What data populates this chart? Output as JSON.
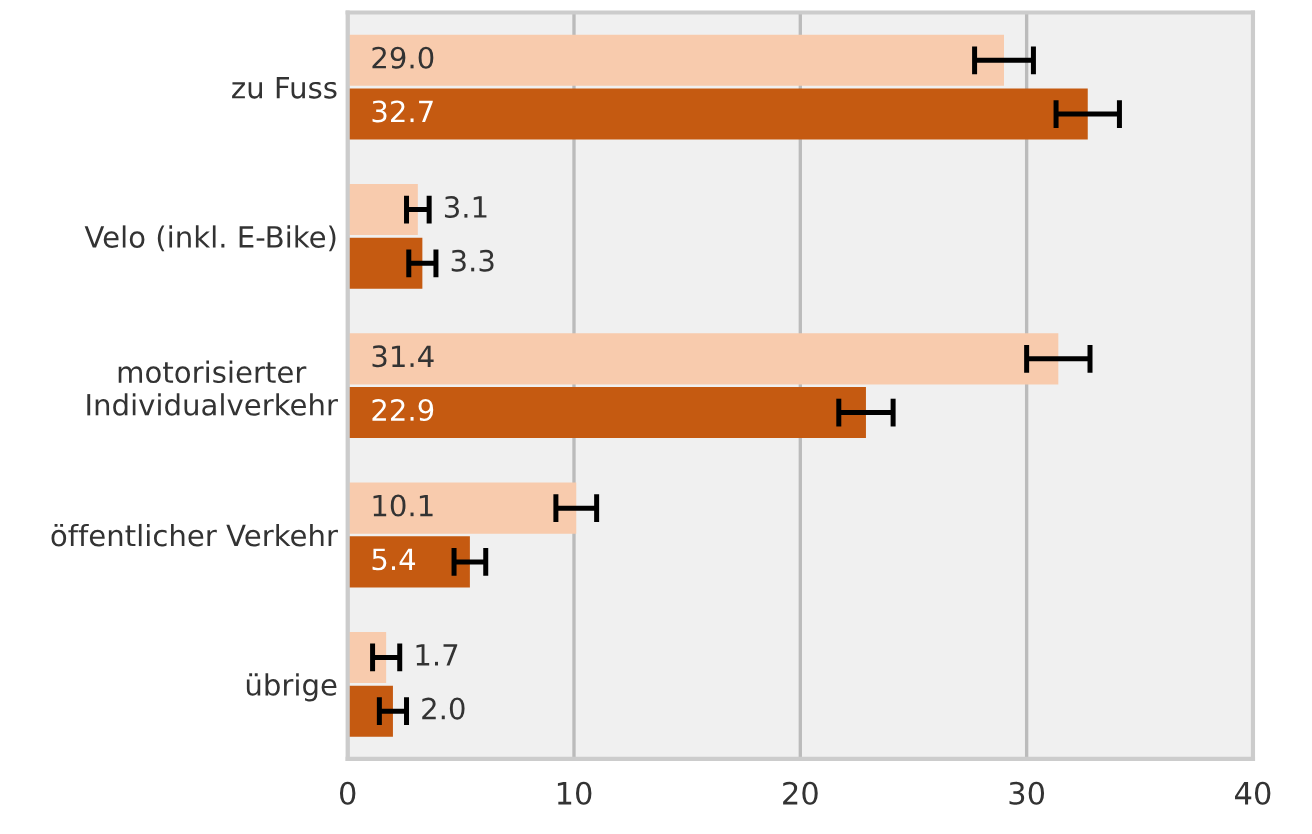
{
  "chart_data": {
    "type": "bar",
    "orientation": "horizontal",
    "categories": [
      "zu Fuss",
      "Velo (inkl. E-Bike)",
      "motorisierter\nIndividualverkehr",
      "öffentlicher Verkehr",
      "übrige"
    ],
    "series": [
      {
        "color": "#f8cbad",
        "values": [
          29.0,
          3.1,
          31.4,
          10.1,
          1.7
        ],
        "value_labels": [
          "29.0",
          "3.1",
          "31.4",
          "10.1",
          "1.7"
        ],
        "errors": [
          1.3,
          0.5,
          1.4,
          0.9,
          0.6
        ]
      },
      {
        "color": "#c55a11",
        "values": [
          32.7,
          3.3,
          22.9,
          5.4,
          2.0
        ],
        "value_labels": [
          "32.7",
          "3.3",
          "22.9",
          "5.4",
          "2.0"
        ],
        "errors": [
          1.4,
          0.6,
          1.2,
          0.7,
          0.6
        ]
      }
    ],
    "xlim": [
      0,
      40
    ],
    "xticks": [
      0,
      10,
      20,
      30,
      40
    ],
    "grid": "x"
  }
}
